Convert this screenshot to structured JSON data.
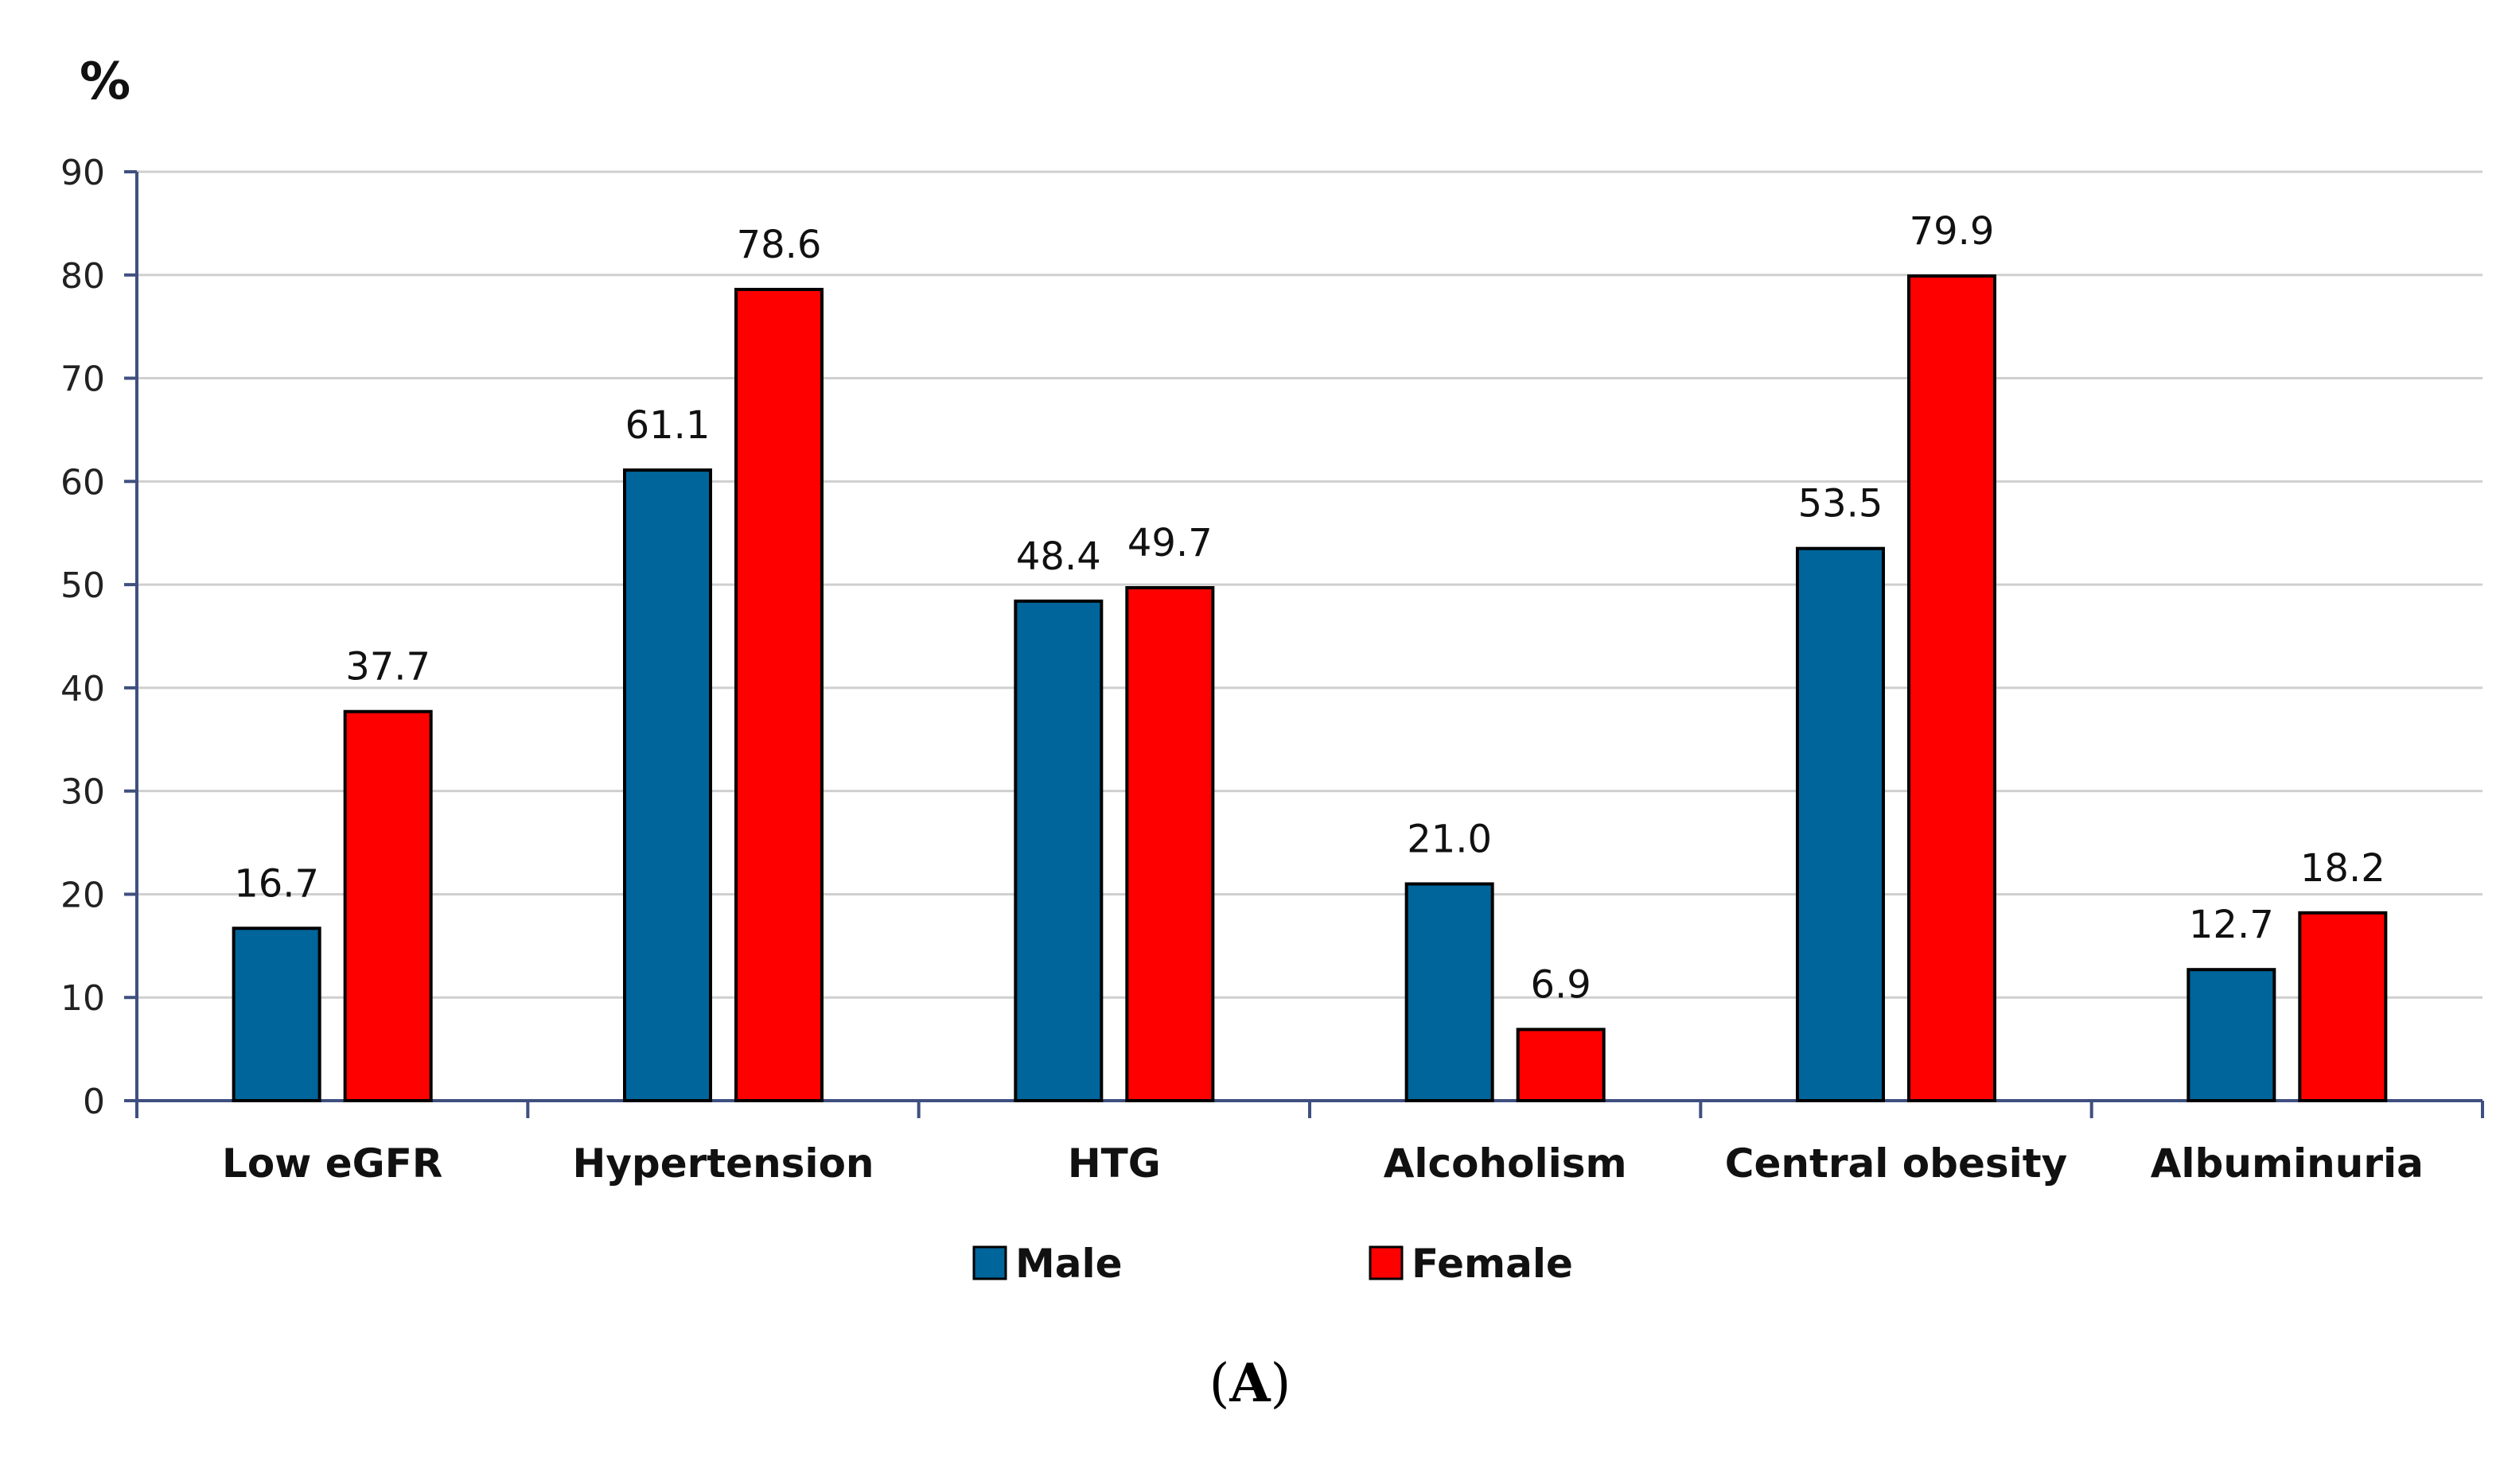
{
  "chart_data": {
    "type": "bar",
    "unit_label": "%",
    "categories": [
      "Low eGFR",
      "Hypertension",
      "HTG",
      "Alcoholism",
      "Central obesity",
      "Albuminuria"
    ],
    "series": [
      {
        "name": "Male",
        "color": "#00659a",
        "values": [
          16.7,
          61.1,
          48.4,
          21.0,
          53.5,
          12.7
        ]
      },
      {
        "name": "Female",
        "color": "#ff0000",
        "values": [
          37.7,
          78.6,
          49.7,
          6.9,
          79.9,
          18.2
        ]
      }
    ],
    "ylim": [
      0,
      90
    ],
    "yticks": [
      0,
      10,
      20,
      30,
      40,
      50,
      60,
      70,
      80,
      90
    ],
    "grid": true,
    "legend": "bottom-center",
    "xlabel": "",
    "ylabel": ""
  },
  "caption": {
    "open": "(",
    "letter": "A",
    "close": ")"
  }
}
